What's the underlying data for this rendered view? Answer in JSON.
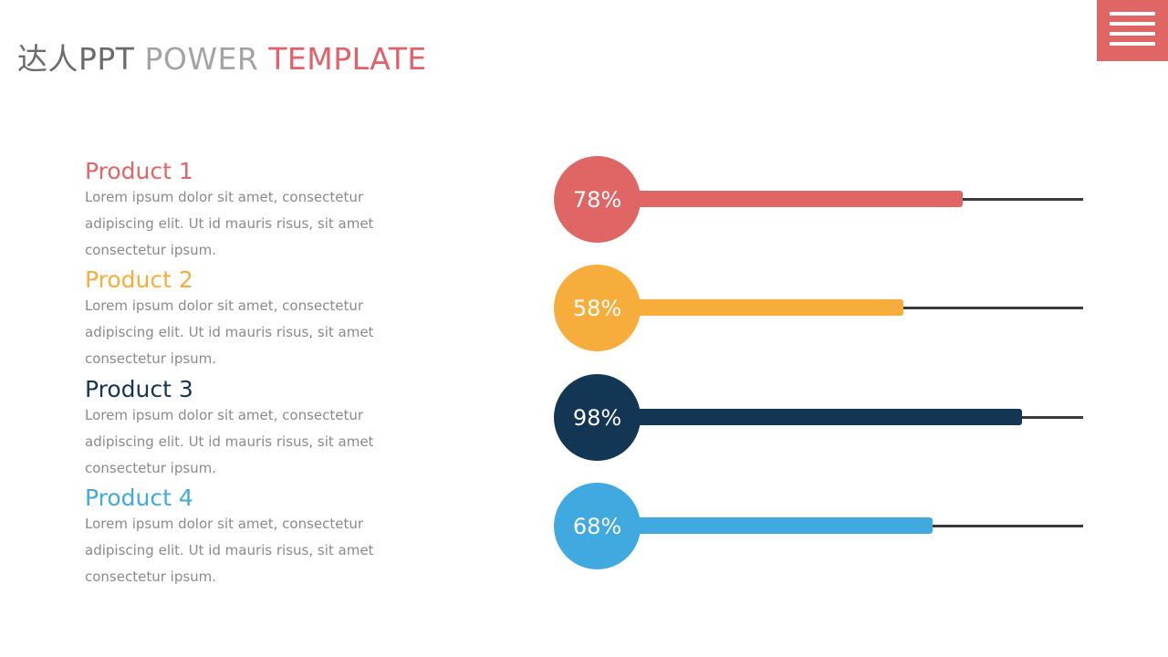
{
  "header": {
    "title_part1": "达人PPT",
    "title_part2": " POWER ",
    "title_part3": "TEMPLATE"
  },
  "menu_icon": "hamburger-menu-icon",
  "colors": {
    "accent": "#e06666",
    "track": "#3a3a3a",
    "text": "#8a8a8a"
  },
  "chart_data": {
    "type": "bar",
    "orientation": "horizontal",
    "unit": "%",
    "categories": [
      "Product 1",
      "Product 2",
      "Product 3",
      "Product 4"
    ],
    "values": [
      78,
      58,
      98,
      68
    ],
    "value_labels": [
      "78%",
      "58%",
      "98%",
      "68%"
    ],
    "colors": [
      "#e06666",
      "#f7ad3b",
      "#133654",
      "#3fa9e0"
    ],
    "descriptions": [
      "Lorem ipsum dolor sit amet, consectetur adipiscing elit. Ut id mauris risus, sit amet consectetur ipsum.",
      "Lorem ipsum dolor sit amet, consectetur adipiscing elit. Ut id mauris risus, sit amet consectetur ipsum.",
      "Lorem ipsum dolor sit amet, consectetur adipiscing elit. Ut id mauris risus, sit amet consectetur ipsum.",
      "Lorem ipsum dolor sit amet, consectetur adipiscing elit. Ut id mauris risus, sit amet consectetur ipsum."
    ],
    "grid": false,
    "legend": "none"
  }
}
